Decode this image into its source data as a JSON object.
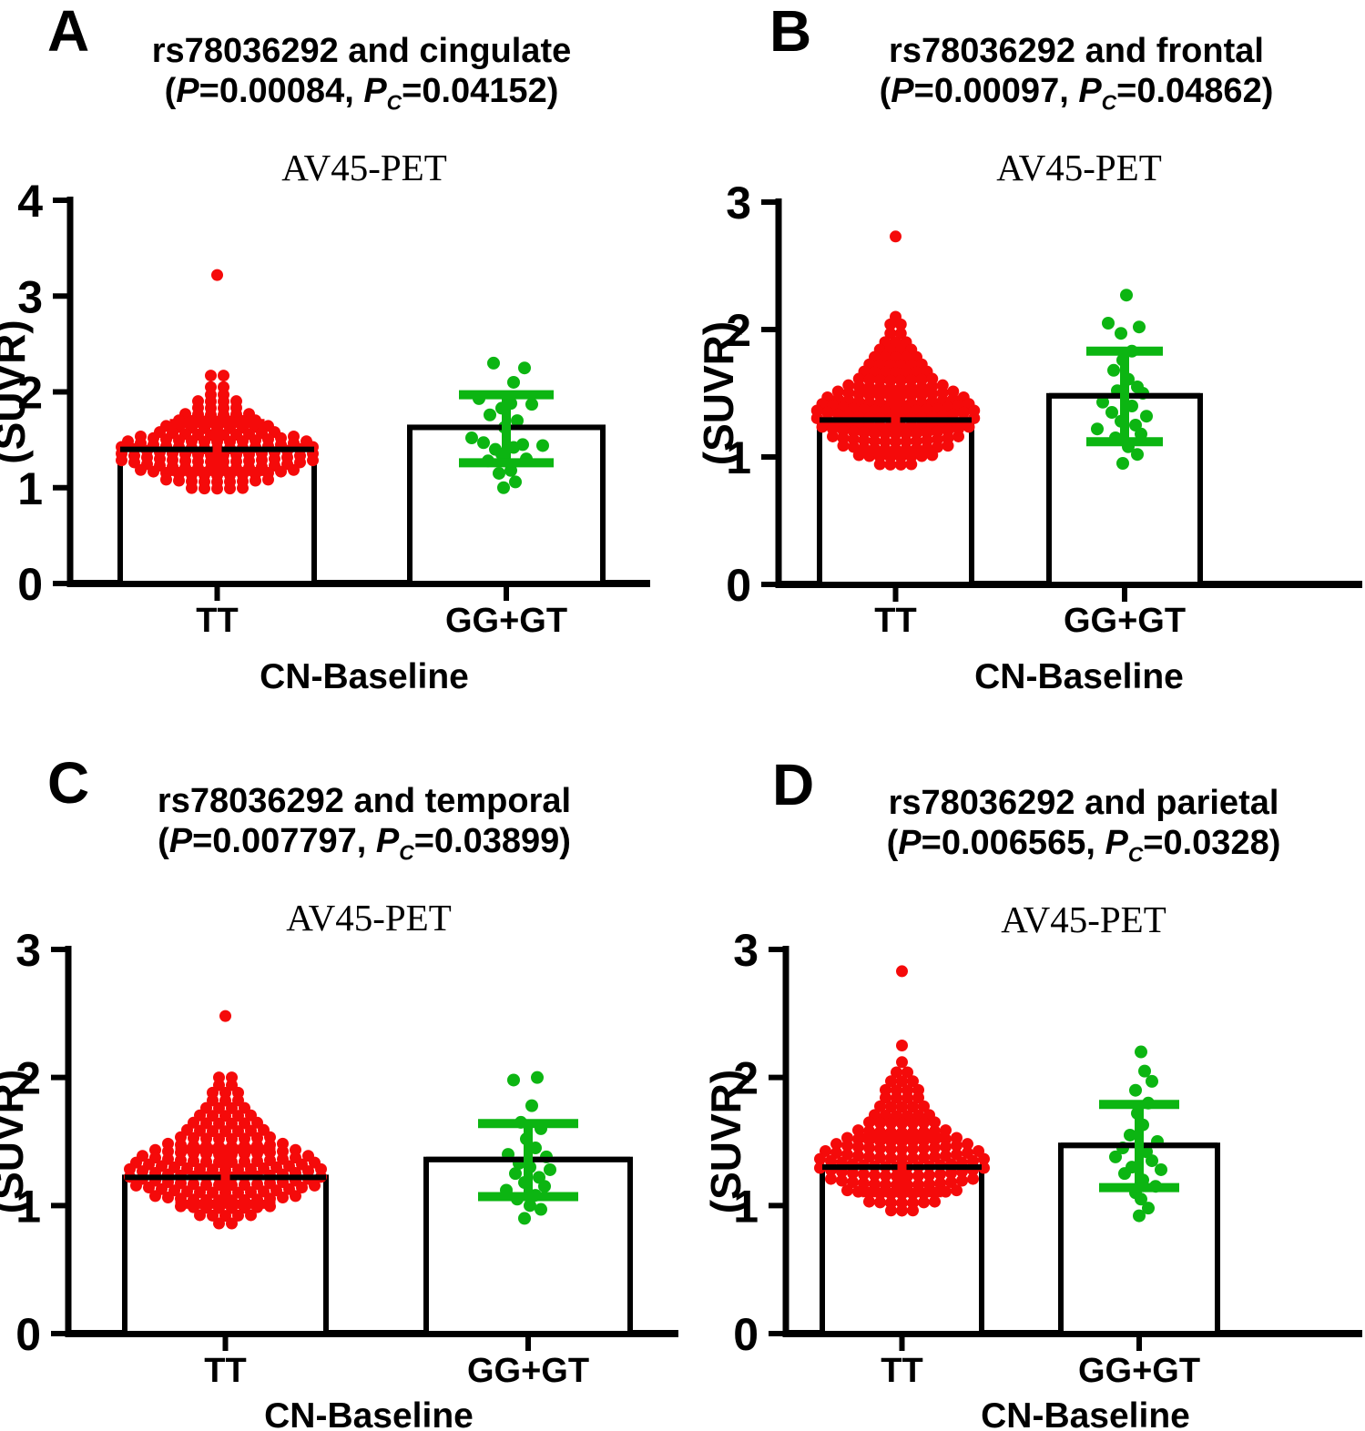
{
  "figure": {
    "background": "#FFFFFF",
    "axis_color": "#000000",
    "bar_fill": "#FFFFFF",
    "accent_red": "#F50A0A",
    "accent_green": "#0CB512"
  },
  "chart_data": [
    {
      "panel": "A",
      "type": "bar",
      "title": "rs78036292 and cingulate",
      "stats_parts": {
        "open": "(",
        "p_sym": "P",
        "p_val": "=0.00084, ",
        "pc_sym": "P",
        "pc_sub": "C",
        "pc_val": "=0.04152)"
      },
      "subtitle": "AV45-PET",
      "ylabel": "(SUVR)",
      "xlabel": "CN-Baseline",
      "categories": [
        "TT",
        "GG+GT"
      ],
      "ylim": [
        0,
        4
      ],
      "yticks": [
        0,
        1,
        2,
        3,
        4
      ],
      "legend": "none",
      "grid": false,
      "series": [
        {
          "name": "TT",
          "color": "#F50A0A",
          "mean": 1.4,
          "err_low": 1.17,
          "err_high": 1.67,
          "swarm_rows": [
            [
              3.22,
              1
            ],
            [
              2.17,
              2
            ],
            [
              2.05,
              2
            ],
            [
              1.97,
              2
            ],
            [
              1.9,
              4
            ],
            [
              1.83,
              4
            ],
            [
              1.76,
              6
            ],
            [
              1.69,
              7
            ],
            [
              1.62,
              9
            ],
            [
              1.55,
              10
            ],
            [
              1.48,
              13
            ],
            [
              1.41,
              15
            ],
            [
              1.34,
              16
            ],
            [
              1.27,
              16
            ],
            [
              1.2,
              16
            ],
            [
              1.13,
              13
            ],
            [
              1.06,
              9
            ],
            [
              0.99,
              5
            ]
          ]
        },
        {
          "name": "GG+GT",
          "color": "#0CB512",
          "mean": 1.63,
          "err_low": 1.26,
          "err_high": 1.97,
          "points": [
            [
              -14,
              2.3
            ],
            [
              20,
              2.25
            ],
            [
              8,
              2.1
            ],
            [
              -30,
              1.93
            ],
            [
              5,
              1.88
            ],
            [
              28,
              1.87
            ],
            [
              -5,
              1.83
            ],
            [
              -18,
              1.76
            ],
            [
              12,
              1.7
            ],
            [
              -2,
              1.63
            ],
            [
              -38,
              1.52
            ],
            [
              -25,
              1.47
            ],
            [
              18,
              1.45
            ],
            [
              40,
              1.44
            ],
            [
              8,
              1.42
            ],
            [
              -12,
              1.4
            ],
            [
              -5,
              1.35
            ],
            [
              22,
              1.3
            ],
            [
              -20,
              1.28
            ],
            [
              5,
              1.18
            ],
            [
              -8,
              1.15
            ],
            [
              10,
              1.06
            ],
            [
              -3,
              1.0
            ]
          ]
        }
      ]
    },
    {
      "panel": "B",
      "type": "bar",
      "title": "rs78036292 and frontal",
      "stats_parts": {
        "open": "(",
        "p_sym": "P",
        "p_val": "=0.00097, ",
        "pc_sym": "P",
        "pc_sub": "C",
        "pc_val": "=0.04862)"
      },
      "subtitle": "AV45-PET",
      "ylabel": "(SUVR)",
      "xlabel": "CN-Baseline",
      "categories": [
        "TT",
        "GG+GT"
      ],
      "ylim": [
        0,
        3
      ],
      "yticks": [
        0,
        1,
        2,
        3
      ],
      "legend": "none",
      "grid": false,
      "series": [
        {
          "name": "TT",
          "color": "#F50A0A",
          "mean": 1.29,
          "err_low": 1.04,
          "err_high": 1.52,
          "swarm_rows": [
            [
              2.73,
              1
            ],
            [
              2.1,
              1
            ],
            [
              2.04,
              2
            ],
            [
              1.97,
              2
            ],
            [
              1.9,
              3
            ],
            [
              1.84,
              4
            ],
            [
              1.78,
              5
            ],
            [
              1.72,
              6
            ],
            [
              1.66,
              7
            ],
            [
              1.6,
              8
            ],
            [
              1.54,
              10
            ],
            [
              1.48,
              12
            ],
            [
              1.42,
              14
            ],
            [
              1.36,
              15
            ],
            [
              1.3,
              16
            ],
            [
              1.24,
              16
            ],
            [
              1.18,
              15
            ],
            [
              1.12,
              13
            ],
            [
              1.06,
              11
            ],
            [
              1.0,
              8
            ],
            [
              0.94,
              4
            ]
          ]
        },
        {
          "name": "GG+GT",
          "color": "#0CB512",
          "mean": 1.48,
          "err_low": 1.12,
          "err_high": 1.83,
          "points": [
            [
              2,
              2.27
            ],
            [
              -18,
              2.05
            ],
            [
              16,
              2.02
            ],
            [
              -4,
              1.97
            ],
            [
              8,
              1.83
            ],
            [
              -2,
              1.76
            ],
            [
              -12,
              1.68
            ],
            [
              4,
              1.61
            ],
            [
              14,
              1.55
            ],
            [
              -8,
              1.52
            ],
            [
              20,
              1.5
            ],
            [
              -24,
              1.43
            ],
            [
              8,
              1.4
            ],
            [
              -14,
              1.35
            ],
            [
              24,
              1.32
            ],
            [
              -4,
              1.28
            ],
            [
              12,
              1.25
            ],
            [
              -30,
              1.22
            ],
            [
              18,
              1.18
            ],
            [
              -10,
              1.15
            ],
            [
              4,
              1.08
            ],
            [
              14,
              1.02
            ],
            [
              -2,
              0.95
            ]
          ]
        }
      ]
    },
    {
      "panel": "C",
      "type": "bar",
      "title": "rs78036292 and temporal",
      "stats_parts": {
        "open": "(",
        "p_sym": "P",
        "p_val": "=0.007797, ",
        "pc_sym": "P",
        "pc_sub": "C",
        "pc_val": "=0.03899)"
      },
      "subtitle": "AV45-PET",
      "ylabel": "(SUVR)",
      "xlabel": "CN-Baseline",
      "categories": [
        "TT",
        "GG+GT"
      ],
      "ylim": [
        0,
        3
      ],
      "yticks": [
        0,
        1,
        2,
        3
      ],
      "legend": "none",
      "grid": false,
      "series": [
        {
          "name": "TT",
          "color": "#F50A0A",
          "mean": 1.22,
          "err_low": 1.01,
          "err_high": 1.44,
          "swarm_rows": [
            [
              2.48,
              1
            ],
            [
              2.0,
              2
            ],
            [
              1.94,
              2
            ],
            [
              1.88,
              3
            ],
            [
              1.82,
              3
            ],
            [
              1.76,
              4
            ],
            [
              1.7,
              5
            ],
            [
              1.64,
              6
            ],
            [
              1.58,
              7
            ],
            [
              1.52,
              8
            ],
            [
              1.46,
              10
            ],
            [
              1.4,
              12
            ],
            [
              1.34,
              14
            ],
            [
              1.28,
              15
            ],
            [
              1.22,
              16
            ],
            [
              1.16,
              16
            ],
            [
              1.1,
              15
            ],
            [
              1.04,
              12
            ],
            [
              0.98,
              8
            ],
            [
              0.92,
              5
            ],
            [
              0.86,
              2
            ]
          ]
        },
        {
          "name": "GG+GT",
          "color": "#0CB512",
          "mean": 1.36,
          "err_low": 1.07,
          "err_high": 1.64,
          "points": [
            [
              10,
              2.0
            ],
            [
              -16,
              1.98
            ],
            [
              4,
              1.78
            ],
            [
              -8,
              1.65
            ],
            [
              14,
              1.6
            ],
            [
              -2,
              1.52
            ],
            [
              8,
              1.45
            ],
            [
              -22,
              1.4
            ],
            [
              20,
              1.38
            ],
            [
              -10,
              1.33
            ],
            [
              2,
              1.3
            ],
            [
              24,
              1.28
            ],
            [
              -14,
              1.25
            ],
            [
              12,
              1.22
            ],
            [
              -4,
              1.18
            ],
            [
              18,
              1.15
            ],
            [
              -24,
              1.12
            ],
            [
              8,
              1.08
            ],
            [
              -12,
              1.05
            ],
            [
              2,
              1.0
            ],
            [
              14,
              0.97
            ],
            [
              -4,
              0.9
            ]
          ]
        }
      ]
    },
    {
      "panel": "D",
      "type": "bar",
      "title": "rs78036292 and parietal",
      "stats_parts": {
        "open": "(",
        "p_sym": "P",
        "p_val": "=0.006565, ",
        "pc_sym": "P",
        "pc_sub": "C",
        "pc_val": "=0.0328)"
      },
      "subtitle": "AV45-PET",
      "ylabel": "(SUVR)",
      "xlabel": "CN-Baseline",
      "categories": [
        "TT",
        "GG+GT"
      ],
      "ylim": [
        0,
        3
      ],
      "yticks": [
        0,
        1,
        2,
        3
      ],
      "legend": "none",
      "grid": false,
      "series": [
        {
          "name": "TT",
          "color": "#F50A0A",
          "mean": 1.3,
          "err_low": 1.1,
          "err_high": 1.53,
          "swarm_rows": [
            [
              2.83,
              1
            ],
            [
              2.25,
              1
            ],
            [
              2.12,
              1
            ],
            [
              2.04,
              2
            ],
            [
              1.97,
              3
            ],
            [
              1.9,
              4
            ],
            [
              1.84,
              4
            ],
            [
              1.77,
              5
            ],
            [
              1.7,
              6
            ],
            [
              1.64,
              7
            ],
            [
              1.57,
              9
            ],
            [
              1.5,
              11
            ],
            [
              1.44,
              13
            ],
            [
              1.37,
              15
            ],
            [
              1.3,
              16
            ],
            [
              1.23,
              16
            ],
            [
              1.16,
              14
            ],
            [
              1.09,
              11
            ],
            [
              1.02,
              7
            ],
            [
              0.96,
              3
            ]
          ]
        },
        {
          "name": "GG+GT",
          "color": "#0CB512",
          "mean": 1.47,
          "err_low": 1.14,
          "err_high": 1.79,
          "points": [
            [
              2,
              2.2
            ],
            [
              6,
              2.05
            ],
            [
              14,
              1.97
            ],
            [
              -4,
              1.9
            ],
            [
              10,
              1.8
            ],
            [
              -2,
              1.72
            ],
            [
              4,
              1.63
            ],
            [
              -10,
              1.55
            ],
            [
              20,
              1.5
            ],
            [
              -18,
              1.45
            ],
            [
              8,
              1.42
            ],
            [
              -26,
              1.38
            ],
            [
              14,
              1.35
            ],
            [
              -8,
              1.3
            ],
            [
              24,
              1.28
            ],
            [
              -16,
              1.25
            ],
            [
              4,
              1.2
            ],
            [
              18,
              1.15
            ],
            [
              -4,
              1.1
            ],
            [
              2,
              1.05
            ],
            [
              10,
              0.98
            ],
            [
              0,
              0.92
            ]
          ]
        }
      ]
    }
  ]
}
